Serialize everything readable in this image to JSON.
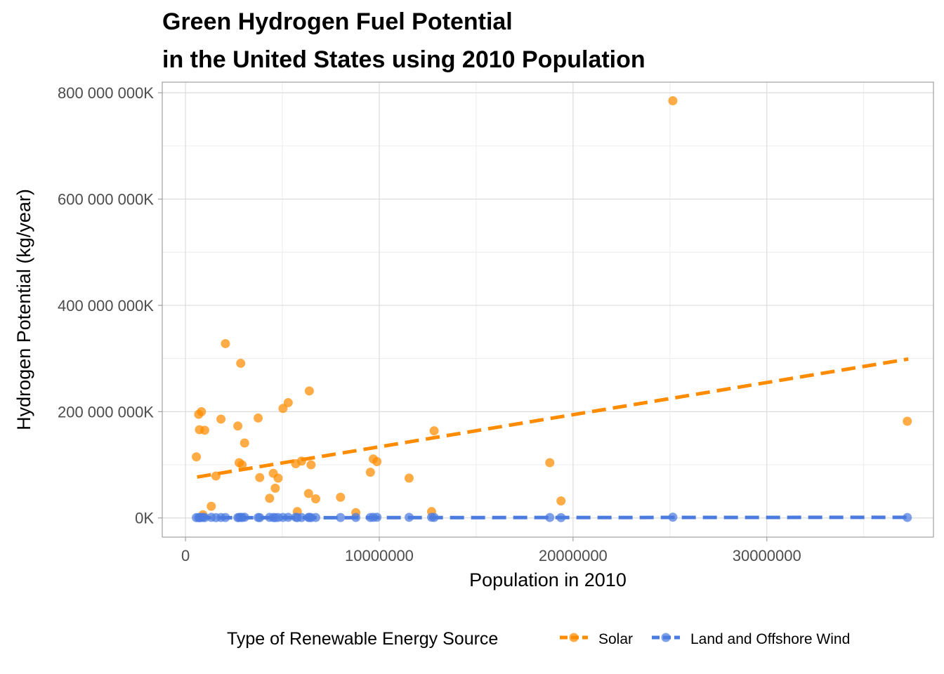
{
  "chart_data": {
    "type": "scatter",
    "title": "Green Hydrogen Fuel Potential",
    "subtitle": "in the United States using 2010 Population",
    "xlabel": "Population in 2010",
    "ylabel": "Hydrogen Potential (kg/year)",
    "xlim": [
      -1200000,
      38600000
    ],
    "ylim": [
      -36000000,
      820000000
    ],
    "x_ticks": [
      0,
      10000000,
      20000000,
      30000000
    ],
    "x_tick_labels": [
      "0",
      "10000000",
      "20000000",
      "30000000"
    ],
    "y_ticks": [
      0,
      200000000,
      400000000,
      600000000,
      800000000
    ],
    "y_tick_labels": [
      "0K",
      "200 000 000K",
      "400 000 000K",
      "600 000 000K",
      "800 000 000K"
    ],
    "grid": true,
    "legend": {
      "title": "Type of Renewable Energy Source",
      "placement": "bottom"
    },
    "series": [
      {
        "name": "Solar",
        "color": "#FF8C00",
        "trend": {
          "x": [
            600000,
            37300000
          ],
          "y": [
            77000000,
            299000000
          ]
        },
        "points": [
          [
            560000,
            115000000
          ],
          [
            680000,
            195000000
          ],
          [
            720000,
            166000000
          ],
          [
            820000,
            200000000
          ],
          [
            900000,
            6000000
          ],
          [
            990000,
            165000000
          ],
          [
            1330000,
            22000000
          ],
          [
            1570000,
            79000000
          ],
          [
            1830000,
            186000000
          ],
          [
            2060000,
            328000000
          ],
          [
            2700000,
            173000000
          ],
          [
            2770000,
            104000000
          ],
          [
            2850000,
            291000000
          ],
          [
            2920000,
            100000000
          ],
          [
            3050000,
            141000000
          ],
          [
            3750000,
            188000000
          ],
          [
            3830000,
            76000000
          ],
          [
            4340000,
            37000000
          ],
          [
            4530000,
            84000000
          ],
          [
            4630000,
            56000000
          ],
          [
            4780000,
            75000000
          ],
          [
            5030000,
            206000000
          ],
          [
            5300000,
            217000000
          ],
          [
            5690000,
            102000000
          ],
          [
            5770000,
            12000000
          ],
          [
            5990000,
            107000000
          ],
          [
            6350000,
            46000000
          ],
          [
            6390000,
            239000000
          ],
          [
            6480000,
            100000000
          ],
          [
            6720000,
            36000000
          ],
          [
            8000000,
            39000000
          ],
          [
            8790000,
            10000000
          ],
          [
            9540000,
            86000000
          ],
          [
            9690000,
            111000000
          ],
          [
            9880000,
            106000000
          ],
          [
            11540000,
            75000000
          ],
          [
            12700000,
            12000000
          ],
          [
            12830000,
            164000000
          ],
          [
            18800000,
            104000000
          ],
          [
            19380000,
            32000000
          ],
          [
            25150000,
            785000000
          ],
          [
            37250000,
            182000000
          ]
        ]
      },
      {
        "name": "Land and Offshore Wind",
        "color": "#4C7BE0",
        "trend": {
          "x": [
            600000,
            37300000
          ],
          "y": [
            400000,
            1200000
          ]
        },
        "points": [
          [
            560000,
            600000
          ],
          [
            680000,
            800000
          ],
          [
            720000,
            500000
          ],
          [
            820000,
            900000
          ],
          [
            900000,
            1200000
          ],
          [
            990000,
            700000
          ],
          [
            1330000,
            1100000
          ],
          [
            1570000,
            600000
          ],
          [
            1830000,
            900000
          ],
          [
            2060000,
            800000
          ],
          [
            2700000,
            700000
          ],
          [
            2770000,
            1000000
          ],
          [
            2850000,
            1200000
          ],
          [
            2920000,
            800000
          ],
          [
            3050000,
            1300000
          ],
          [
            3750000,
            900000
          ],
          [
            3830000,
            700000
          ],
          [
            4340000,
            1100000
          ],
          [
            4530000,
            800000
          ],
          [
            4630000,
            600000
          ],
          [
            4780000,
            900000
          ],
          [
            5030000,
            1000000
          ],
          [
            5300000,
            1200000
          ],
          [
            5690000,
            1300000
          ],
          [
            5770000,
            700000
          ],
          [
            5990000,
            800000
          ],
          [
            6350000,
            1000000
          ],
          [
            6390000,
            1100000
          ],
          [
            6480000,
            700000
          ],
          [
            6720000,
            900000
          ],
          [
            8000000,
            800000
          ],
          [
            8790000,
            1000000
          ],
          [
            9540000,
            900000
          ],
          [
            9690000,
            1100000
          ],
          [
            9880000,
            1300000
          ],
          [
            11540000,
            1200000
          ],
          [
            12700000,
            1300000
          ],
          [
            12830000,
            1000000
          ],
          [
            18800000,
            900000
          ],
          [
            19380000,
            700000
          ],
          [
            25150000,
            1500000
          ],
          [
            37250000,
            900000
          ]
        ]
      }
    ]
  }
}
